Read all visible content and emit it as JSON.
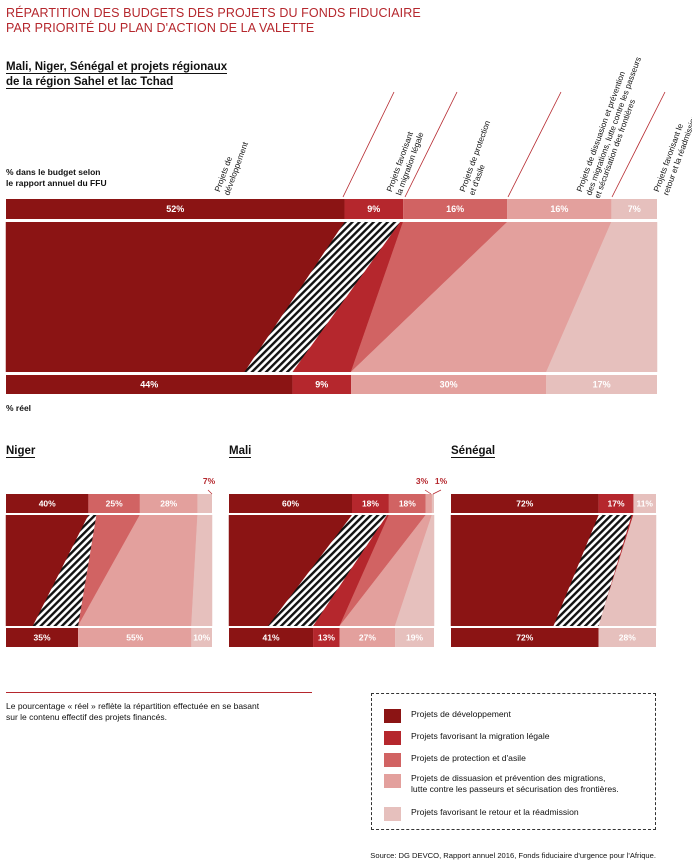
{
  "title_line1": "RÉPARTITION DES BUDGETS DES PROJETS DU FONDS FIDUCIAIRE",
  "title_line2": "PAR PRIORITÉ DU PLAN D'ACTION DE LA VALETTE",
  "colors": {
    "dev": "#8b1414",
    "migration": "#b5272d",
    "protection": "#d16363",
    "dissuasion": "#e3a09d",
    "retour": "#e6c0bd"
  },
  "main_region": {
    "title_line1": "Mali, Niger, Sénégal et projets régionaux",
    "title_line2": "de la région Sahel et lac Tchad",
    "budget_label_line1": "% dans le budget selon",
    "budget_label_line2": "le rapport annuel du FFU",
    "real_label": "% réel",
    "column_labels": [
      [
        "Projets de",
        "développement"
      ],
      [
        "Projets favorisant",
        "la migration légale"
      ],
      [
        "Projets de protection",
        "et d'asile"
      ],
      [
        "Projets de dissuasion et prévention",
        "des migrations, lutte contre les passeurs",
        "et sécurisation des frontières"
      ],
      [
        "Projets favorisant le",
        "retour et la réadmission"
      ]
    ]
  },
  "chart_data": [
    {
      "type": "bar",
      "name": "Mali, Niger, Sénégal et projets régionaux de la région Sahel et lac Tchad",
      "categories": [
        "Projets de développement",
        "Projets favorisant la migration légale",
        "Projets de protection et d'asile",
        "Projets de dissuasion et prévention des migrations, lutte contre les passeurs et sécurisation des frontières",
        "Projets favorisant le retour et la réadmission"
      ],
      "budget": [
        52,
        9,
        16,
        16,
        7
      ],
      "real": [
        44,
        9,
        0,
        30,
        17
      ],
      "budget_labels": [
        "52%",
        "9%",
        "16%",
        "16%",
        "7%"
      ],
      "real_labels": [
        "44%",
        "9%",
        "",
        "30%",
        "17%"
      ]
    },
    {
      "type": "bar",
      "name": "Niger",
      "budget": [
        40,
        0,
        25,
        28,
        7
      ],
      "real": [
        35,
        0,
        0,
        55,
        10
      ],
      "budget_labels": [
        "40%",
        "",
        "25%",
        "28%",
        "7%"
      ],
      "real_labels": [
        "35%",
        "",
        "",
        "55%",
        "10%"
      ]
    },
    {
      "type": "bar",
      "name": "Mali",
      "budget": [
        60,
        18,
        18,
        3,
        1
      ],
      "real": [
        41,
        13,
        0,
        27,
        19
      ],
      "budget_labels": [
        "60%",
        "18%",
        "18%",
        "3%",
        "1%"
      ],
      "real_labels": [
        "41%",
        "13%",
        "",
        "27%",
        "19%"
      ]
    },
    {
      "type": "bar",
      "name": "Sénégal",
      "budget": [
        72,
        17,
        0,
        0,
        11
      ],
      "real": [
        72,
        0,
        0,
        0,
        28
      ],
      "budget_labels": [
        "72%",
        "17%",
        "",
        "",
        "11%"
      ],
      "real_labels": [
        "72%",
        "",
        "",
        "",
        "28%"
      ]
    }
  ],
  "small_titles": {
    "niger": "Niger",
    "mali": "Mali",
    "senegal": "Sénégal"
  },
  "note_line1": "Le pourcentage « réel » reflète la répartition effectuée en se basant",
  "note_line2": "sur le contenu effectif des projets financés.",
  "legend": {
    "dev": "Projets de développement",
    "migration": "Projets favorisant la migration légale",
    "protection": "Projets de protection et d'asile",
    "dissuasion_line1": "Projets de dissuasion et prévention des migrations,",
    "dissuasion_line2": "lutte contre les passeurs et sécurisation des frontières.",
    "retour": "Projets favorisant le retour et la réadmission"
  },
  "source": "Source: DG DEVCO, Rapport annuel 2016, Fonds fiduciaire d'urgence pour l'Afrique."
}
